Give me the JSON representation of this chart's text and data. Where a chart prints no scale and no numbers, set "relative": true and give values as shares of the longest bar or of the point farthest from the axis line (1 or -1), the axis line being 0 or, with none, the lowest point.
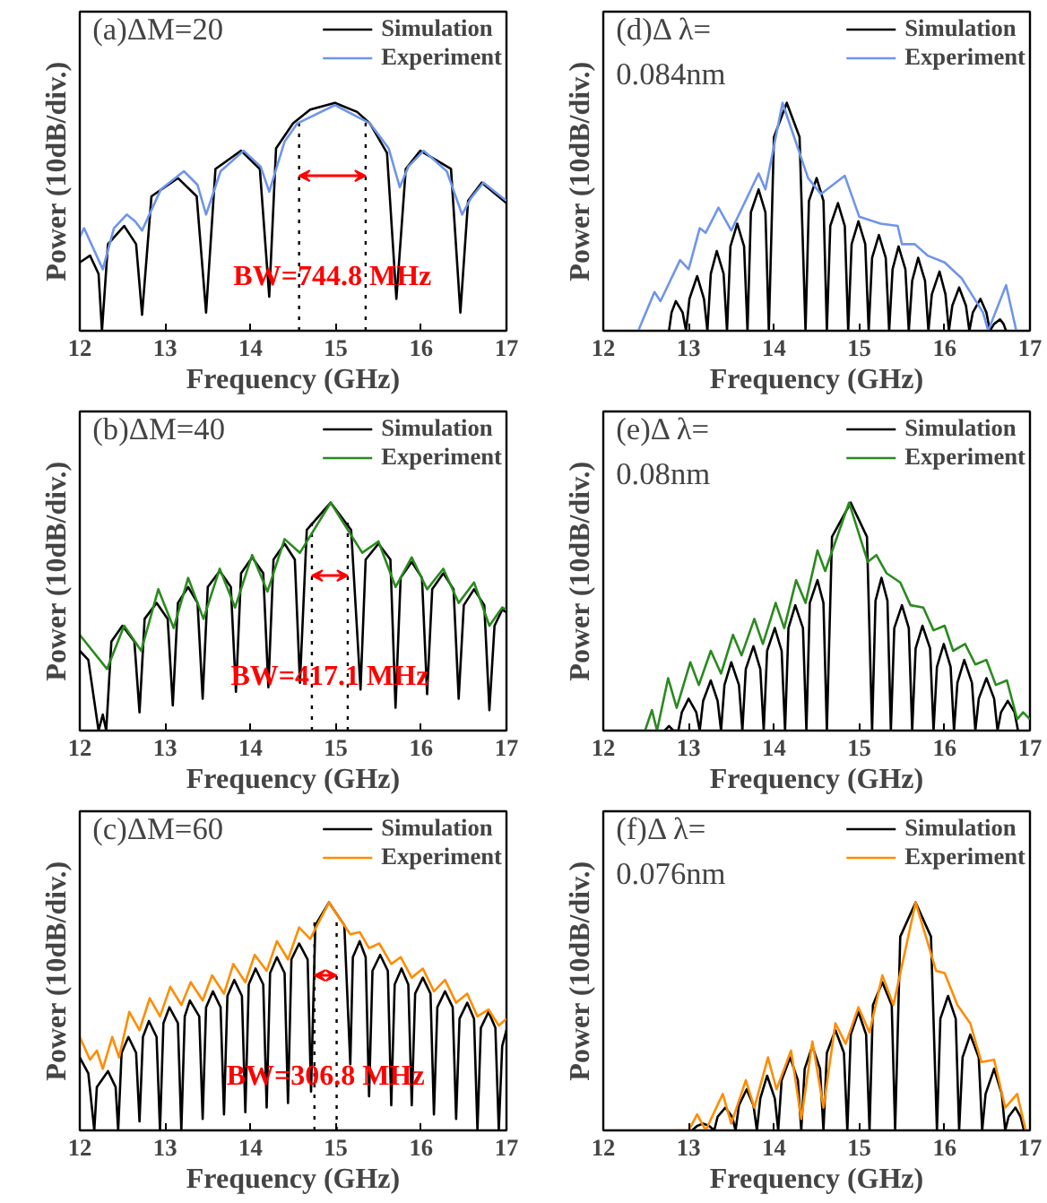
{
  "chart_data": [
    {
      "type": "line",
      "relative": true,
      "xlabel": "Frequency (GHz)",
      "ylabel": "Power (10dB/div.)",
      "xlim": [
        12,
        17
      ],
      "xticks": [
        12,
        13,
        14,
        15,
        16,
        17
      ],
      "legend": "top right",
      "annotations": [
        "(a)ΔM=20",
        "BW=744.8 MHz"
      ],
      "ref_lines": [
        {
          "axis": "x",
          "value": 14.57,
          "color": "#000000",
          "line_style": "dotted"
        },
        {
          "axis": "x",
          "value": 15.35,
          "color": "#000000",
          "line_style": "dotted"
        }
      ],
      "series": [
        {
          "name": "Simulation",
          "color": "#000000",
          "x": [
            12.0,
            12.12,
            12.22,
            12.26,
            12.33,
            12.52,
            12.66,
            12.73,
            12.84,
            13.15,
            13.37,
            13.48,
            13.59,
            13.89,
            14.11,
            14.22,
            14.3,
            14.5,
            14.7,
            14.99,
            15.25,
            15.4,
            15.6,
            15.71,
            15.82,
            15.99,
            16.35,
            16.46,
            16.55,
            16.71,
            17.0
          ],
          "values": [
            0.3,
            0.33,
            0.25,
            0,
            0.38,
            0.46,
            0.38,
            0.07,
            0.59,
            0.67,
            0.59,
            0.08,
            0.71,
            0.79,
            0.71,
            0.15,
            0.8,
            0.91,
            0.97,
            1.0,
            0.96,
            0.91,
            0.78,
            0.14,
            0.71,
            0.79,
            0.71,
            0.08,
            0.57,
            0.65,
            0.56
          ]
        },
        {
          "name": "Experiment",
          "color": "#6f95ea",
          "x": [
            12.0,
            12.05,
            12.27,
            12.4,
            12.55,
            12.65,
            12.73,
            12.95,
            13.22,
            13.38,
            13.48,
            13.65,
            13.92,
            14.12,
            14.22,
            14.4,
            14.55,
            14.99,
            15.4,
            15.62,
            15.75,
            15.85,
            16.03,
            16.3,
            16.48,
            16.58,
            16.73,
            17.0
          ],
          "values": [
            0.41,
            0.45,
            0.27,
            0.45,
            0.51,
            0.48,
            0.44,
            0.62,
            0.7,
            0.64,
            0.51,
            0.7,
            0.79,
            0.72,
            0.61,
            0.83,
            0.91,
            0.99,
            0.91,
            0.8,
            0.63,
            0.72,
            0.79,
            0.7,
            0.51,
            0.58,
            0.65,
            0.57
          ]
        }
      ]
    },
    {
      "type": "line",
      "relative": true,
      "xlabel": "Frequency (GHz)",
      "ylabel": "Power (10dB/div.)",
      "xlim": [
        12,
        17
      ],
      "xticks": [
        12,
        13,
        14,
        15,
        16,
        17
      ],
      "legend": "top right",
      "annotations": [
        "(d)Δ λ=\n0.084nm"
      ],
      "series": [
        {
          "name": "Simulation",
          "color": "#000000",
          "x": [
            12.77,
            12.8,
            12.85,
            12.93,
            12.97,
            13.01,
            13.1,
            13.18,
            13.22,
            13.26,
            13.33,
            13.41,
            13.45,
            13.49,
            13.57,
            13.65,
            13.69,
            13.73,
            13.82,
            13.9,
            13.94,
            14.0,
            14.15,
            14.3,
            14.37,
            14.41,
            14.5,
            14.58,
            14.62,
            14.66,
            14.75,
            14.83,
            14.87,
            14.91,
            14.99,
            15.07,
            15.11,
            15.15,
            15.23,
            15.31,
            15.35,
            15.39,
            15.46,
            15.54,
            15.58,
            15.62,
            15.69,
            15.77,
            15.81,
            15.85,
            15.94,
            16.01,
            16.05,
            16.09,
            16.17,
            16.25,
            16.29,
            16.33,
            16.42,
            16.49,
            16.53,
            16.58,
            16.65,
            16.69,
            16.72
          ],
          "values": [
            0,
            0.08,
            0.13,
            0.08,
            0,
            0.14,
            0.24,
            0.14,
            0,
            0.25,
            0.35,
            0.25,
            0,
            0.37,
            0.47,
            0.37,
            0,
            0.52,
            0.62,
            0.52,
            0,
            0.85,
            1.0,
            0.85,
            0,
            0.57,
            0.67,
            0.57,
            0,
            0.46,
            0.56,
            0.46,
            0,
            0.38,
            0.48,
            0.38,
            0,
            0.32,
            0.42,
            0.32,
            0,
            0.27,
            0.37,
            0.27,
            0,
            0.22,
            0.32,
            0.22,
            0,
            0.16,
            0.26,
            0.16,
            0,
            0.11,
            0.19,
            0.11,
            0,
            0.08,
            0.14,
            0.08,
            0,
            0.03,
            0.05,
            0.03,
            0
          ]
        },
        {
          "name": "Experiment",
          "color": "#6f95ea",
          "x": [
            12.41,
            12.6,
            12.67,
            12.9,
            13.0,
            13.13,
            13.2,
            13.35,
            13.5,
            13.82,
            13.9,
            14.1,
            14.4,
            14.55,
            14.83,
            15.0,
            15.25,
            15.45,
            15.5,
            15.65,
            15.8,
            16.0,
            16.2,
            16.25,
            16.45,
            16.51,
            16.72,
            16.84
          ],
          "values": [
            0,
            0.17,
            0.13,
            0.31,
            0.27,
            0.45,
            0.43,
            0.54,
            0.44,
            0.69,
            0.62,
            1.0,
            0.67,
            0.6,
            0.68,
            0.5,
            0.47,
            0.46,
            0.38,
            0.38,
            0.33,
            0.3,
            0.23,
            0.2,
            0.08,
            0,
            0.2,
            0
          ]
        }
      ]
    },
    {
      "type": "line",
      "relative": true,
      "xlabel": "Frequency (GHz)",
      "ylabel": "Power (10dB/div.)",
      "xlim": [
        12,
        17
      ],
      "xticks": [
        12,
        13,
        14,
        15,
        16,
        17
      ],
      "legend": "top right",
      "annotations": [
        "(b)ΔM=40",
        "BW=417.1 MHz"
      ],
      "ref_lines": [
        {
          "axis": "x",
          "value": 14.72,
          "color": "#000000",
          "line_style": "dotted"
        },
        {
          "axis": "x",
          "value": 15.14,
          "color": "#000000",
          "line_style": "dotted"
        }
      ],
      "series": [
        {
          "name": "Simulation",
          "color": "#000000",
          "x": [
            12.0,
            12.1,
            12.22,
            12.27,
            12.31,
            12.37,
            12.5,
            12.64,
            12.7,
            12.76,
            12.9,
            13.03,
            13.09,
            13.15,
            13.27,
            13.38,
            13.44,
            13.5,
            13.64,
            13.77,
            13.83,
            13.89,
            14.02,
            14.15,
            14.21,
            14.27,
            14.4,
            14.52,
            14.58,
            14.66,
            14.94,
            15.18,
            15.29,
            15.35,
            15.5,
            15.64,
            15.7,
            15.76,
            15.89,
            16.01,
            16.07,
            16.13,
            16.26,
            16.38,
            16.44,
            16.5,
            16.62,
            16.74,
            16.8,
            16.86,
            16.95,
            17.0
          ],
          "values": [
            0.35,
            0.31,
            0,
            0.07,
            0,
            0.39,
            0.46,
            0.39,
            0.08,
            0.49,
            0.56,
            0.49,
            0.11,
            0.56,
            0.63,
            0.56,
            0.14,
            0.63,
            0.7,
            0.63,
            0.17,
            0.69,
            0.76,
            0.69,
            0.19,
            0.75,
            0.82,
            0.75,
            0.21,
            0.88,
            1.0,
            0.88,
            0.18,
            0.75,
            0.82,
            0.75,
            0.1,
            0.67,
            0.74,
            0.67,
            0.16,
            0.62,
            0.69,
            0.62,
            0.14,
            0.55,
            0.62,
            0.55,
            0.09,
            0.46,
            0.53,
            0.52
          ]
        },
        {
          "name": "Experiment",
          "color": "#2a8a1e",
          "x": [
            12.0,
            12.32,
            12.52,
            12.72,
            12.92,
            13.1,
            13.27,
            13.45,
            13.64,
            13.82,
            14.02,
            14.2,
            14.4,
            14.58,
            14.94,
            15.31,
            15.5,
            15.7,
            15.89,
            16.07,
            16.26,
            16.44,
            16.62,
            16.8,
            16.95,
            17.0
          ],
          "values": [
            0.42,
            0.27,
            0.46,
            0.35,
            0.62,
            0.45,
            0.67,
            0.49,
            0.71,
            0.54,
            0.77,
            0.61,
            0.84,
            0.78,
            1.0,
            0.78,
            0.83,
            0.63,
            0.76,
            0.62,
            0.71,
            0.56,
            0.65,
            0.46,
            0.54,
            0.53
          ]
        }
      ]
    },
    {
      "type": "line",
      "relative": true,
      "xlabel": "Frequency (GHz)",
      "ylabel": "Power (10dB/div.)",
      "xlim": [
        12,
        17
      ],
      "xticks": [
        12,
        13,
        14,
        15,
        16,
        17
      ],
      "legend": "top right",
      "annotations": [
        "(e)Δ λ=\n0.08nm"
      ],
      "series": [
        {
          "name": "Simulation",
          "color": "#000000",
          "x": [
            12.72,
            12.77,
            12.82,
            12.88,
            12.92,
            13.0,
            13.09,
            13.13,
            13.17,
            13.26,
            13.34,
            13.38,
            13.42,
            13.5,
            13.59,
            13.63,
            13.67,
            13.76,
            13.84,
            13.88,
            13.92,
            14.01,
            14.09,
            14.13,
            14.17,
            14.25,
            14.34,
            14.38,
            14.42,
            14.51,
            14.58,
            14.62,
            14.68,
            14.9,
            15.09,
            15.15,
            15.19,
            15.26,
            15.33,
            15.37,
            15.41,
            15.5,
            15.58,
            15.62,
            15.66,
            15.74,
            15.83,
            15.87,
            15.91,
            15.99,
            16.07,
            16.11,
            16.15,
            16.23,
            16.32,
            16.36,
            16.4,
            16.49,
            16.58,
            16.62,
            16.66,
            16.74,
            16.82,
            16.86
          ],
          "values": [
            0,
            0.02,
            0,
            0,
            0.08,
            0.14,
            0.08,
            0,
            0.13,
            0.22,
            0.13,
            0,
            0.2,
            0.3,
            0.2,
            0,
            0.27,
            0.37,
            0.27,
            0,
            0.35,
            0.45,
            0.35,
            0,
            0.45,
            0.55,
            0.45,
            0,
            0.56,
            0.66,
            0.56,
            0,
            0.85,
            1.0,
            0.85,
            0,
            0.57,
            0.67,
            0.57,
            0,
            0.45,
            0.55,
            0.45,
            0,
            0.36,
            0.46,
            0.36,
            0,
            0.28,
            0.38,
            0.28,
            0,
            0.21,
            0.31,
            0.21,
            0,
            0.14,
            0.23,
            0.14,
            0,
            0.08,
            0.13,
            0.08,
            0
          ]
        },
        {
          "name": "Experiment",
          "color": "#2a8a1e",
          "x": [
            12.49,
            12.57,
            12.63,
            12.76,
            12.86,
            13.02,
            13.12,
            13.26,
            13.38,
            13.52,
            13.62,
            13.77,
            13.87,
            14.02,
            14.12,
            14.26,
            14.37,
            14.51,
            14.6,
            14.88,
            15.1,
            15.2,
            15.32,
            15.48,
            15.6,
            15.75,
            15.87,
            16.0,
            16.1,
            16.24,
            16.36,
            16.49,
            16.6,
            16.73,
            16.85,
            16.92,
            17.0
          ],
          "values": [
            0,
            0.09,
            0,
            0.23,
            0.1,
            0.3,
            0.2,
            0.35,
            0.25,
            0.42,
            0.33,
            0.49,
            0.38,
            0.56,
            0.45,
            0.66,
            0.56,
            0.79,
            0.7,
            1.0,
            0.74,
            0.77,
            0.69,
            0.65,
            0.55,
            0.54,
            0.44,
            0.46,
            0.35,
            0.38,
            0.29,
            0.31,
            0.2,
            0.22,
            0.05,
            0.08,
            0.05
          ]
        }
      ]
    },
    {
      "type": "line",
      "relative": true,
      "xlabel": "Frequency (GHz)",
      "ylabel": "Power (10dB/div.)",
      "xlim": [
        12,
        17
      ],
      "xticks": [
        12,
        13,
        14,
        15,
        16,
        17
      ],
      "legend": "top right",
      "annotations": [
        "(c)ΔM=60",
        "BW=306.8 MHz"
      ],
      "ref_lines": [
        {
          "axis": "x",
          "value": 14.75,
          "color": "#000000",
          "line_style": "dotted"
        },
        {
          "axis": "x",
          "value": 15.01,
          "color": "#000000",
          "line_style": "dotted"
        }
      ],
      "series": [
        {
          "name": "Simulation",
          "color": "#000000",
          "x": [
            12.0,
            12.1,
            12.17,
            12.2,
            12.33,
            12.42,
            12.45,
            12.49,
            12.57,
            12.66,
            12.7,
            12.74,
            12.81,
            12.9,
            12.94,
            12.98,
            13.05,
            13.15,
            13.19,
            13.23,
            13.29,
            13.4,
            13.44,
            13.48,
            13.56,
            13.65,
            13.69,
            13.73,
            13.81,
            13.9,
            13.94,
            13.98,
            14.06,
            14.15,
            14.19,
            14.23,
            14.31,
            14.4,
            14.44,
            14.48,
            14.57,
            14.67,
            14.71,
            14.76,
            14.92,
            15.1,
            15.17,
            15.2,
            15.28,
            15.35,
            15.39,
            15.43,
            15.52,
            15.61,
            15.65,
            15.69,
            15.77,
            15.85,
            15.89,
            15.93,
            16.02,
            16.11,
            16.15,
            16.19,
            16.28,
            16.37,
            16.41,
            16.45,
            16.54,
            16.62,
            16.66,
            16.7,
            16.79,
            16.87,
            16.91,
            16.95,
            17.0
          ],
          "values": [
            0.32,
            0.25,
            0,
            0.19,
            0.26,
            0.19,
            0,
            0.34,
            0.41,
            0.34,
            0.04,
            0.41,
            0.48,
            0.41,
            0,
            0.47,
            0.54,
            0.47,
            0,
            0.5,
            0.57,
            0.5,
            0.05,
            0.54,
            0.61,
            0.54,
            0.07,
            0.59,
            0.66,
            0.59,
            0.08,
            0.64,
            0.71,
            0.64,
            0.1,
            0.69,
            0.76,
            0.69,
            0.12,
            0.75,
            0.82,
            0.75,
            0.17,
            0.9,
            1.0,
            0.9,
            0.29,
            0.76,
            0.83,
            0.76,
            0.15,
            0.7,
            0.77,
            0.7,
            0.11,
            0.64,
            0.71,
            0.64,
            0.11,
            0.6,
            0.67,
            0.6,
            0.07,
            0.54,
            0.61,
            0.54,
            0.05,
            0.49,
            0.56,
            0.49,
            0,
            0.45,
            0.52,
            0.45,
            0,
            0.37,
            0.44
          ]
        },
        {
          "name": "Experiment",
          "color": "#ff8c00",
          "x": [
            12.0,
            12.12,
            12.2,
            12.27,
            12.38,
            12.46,
            12.58,
            12.7,
            12.82,
            12.94,
            13.06,
            13.19,
            13.3,
            13.44,
            13.55,
            13.69,
            13.8,
            13.94,
            14.05,
            14.19,
            14.31,
            14.44,
            14.57,
            14.7,
            14.92,
            15.17,
            15.28,
            15.39,
            15.51,
            15.65,
            15.76,
            15.89,
            16.02,
            16.15,
            16.28,
            16.41,
            16.54,
            16.66,
            16.79,
            16.91,
            17.0
          ],
          "values": [
            0.41,
            0.31,
            0.35,
            0.27,
            0.41,
            0.32,
            0.52,
            0.44,
            0.58,
            0.5,
            0.63,
            0.55,
            0.65,
            0.57,
            0.68,
            0.6,
            0.73,
            0.65,
            0.77,
            0.7,
            0.83,
            0.75,
            0.89,
            0.84,
            1.0,
            0.86,
            0.87,
            0.8,
            0.82,
            0.73,
            0.76,
            0.67,
            0.71,
            0.61,
            0.66,
            0.56,
            0.6,
            0.5,
            0.53,
            0.46,
            0.49
          ]
        }
      ]
    },
    {
      "type": "line",
      "relative": true,
      "xlabel": "Frequency (GHz)",
      "ylabel": "Power (10dB/div.)",
      "xlim": [
        12,
        17
      ],
      "xticks": [
        12,
        13,
        14,
        15,
        16,
        17
      ],
      "legend": "top right",
      "annotations": [
        "(f)Δ λ=\n0.076nm"
      ],
      "series": [
        {
          "name": "Simulation",
          "color": "#000000",
          "x": [
            13.04,
            13.1,
            13.17,
            13.24,
            13.3,
            13.34,
            13.43,
            13.51,
            13.55,
            13.59,
            13.68,
            13.76,
            13.8,
            13.84,
            13.92,
            14.01,
            14.05,
            14.09,
            14.19,
            14.28,
            14.32,
            14.36,
            14.45,
            14.54,
            14.58,
            14.62,
            14.72,
            14.82,
            14.86,
            14.9,
            14.99,
            15.08,
            15.12,
            15.16,
            15.27,
            15.38,
            15.42,
            15.48,
            15.66,
            15.84,
            15.91,
            15.95,
            16.04,
            16.13,
            16.17,
            16.21,
            16.3,
            16.4,
            16.44,
            16.48,
            16.58,
            16.67,
            16.71,
            16.75,
            16.83,
            16.89,
            16.93
          ],
          "values": [
            0,
            0.02,
            0.03,
            0.02,
            0,
            0.06,
            0.1,
            0.06,
            0,
            0.11,
            0.18,
            0.11,
            0,
            0.14,
            0.24,
            0.14,
            0,
            0.22,
            0.32,
            0.22,
            0,
            0.27,
            0.37,
            0.27,
            0,
            0.34,
            0.44,
            0.34,
            0,
            0.42,
            0.52,
            0.42,
            0,
            0.55,
            0.65,
            0.55,
            0,
            0.85,
            1.0,
            0.85,
            0,
            0.49,
            0.59,
            0.49,
            0,
            0.32,
            0.42,
            0.32,
            0,
            0.16,
            0.27,
            0.16,
            0,
            0.06,
            0.1,
            0.06,
            0
          ]
        },
        {
          "name": "Experiment",
          "color": "#ff8c00",
          "x": [
            12.82,
            13.0,
            13.1,
            13.2,
            13.4,
            13.5,
            13.67,
            13.77,
            13.93,
            14.03,
            14.2,
            14.32,
            14.45,
            14.58,
            14.72,
            14.84,
            14.99,
            15.12,
            15.27,
            15.4,
            15.66,
            15.9,
            16.0,
            16.15,
            16.3,
            16.43,
            16.58,
            16.71,
            16.85,
            16.95
          ],
          "values": [
            0,
            0,
            0.07,
            0,
            0.16,
            0.03,
            0.22,
            0.1,
            0.32,
            0.18,
            0.35,
            0.05,
            0.39,
            0.1,
            0.47,
            0.38,
            0.54,
            0.43,
            0.68,
            0.55,
            1.0,
            0.7,
            0.69,
            0.55,
            0.47,
            0.3,
            0.31,
            0.1,
            0.16,
            0
          ]
        }
      ]
    }
  ]
}
